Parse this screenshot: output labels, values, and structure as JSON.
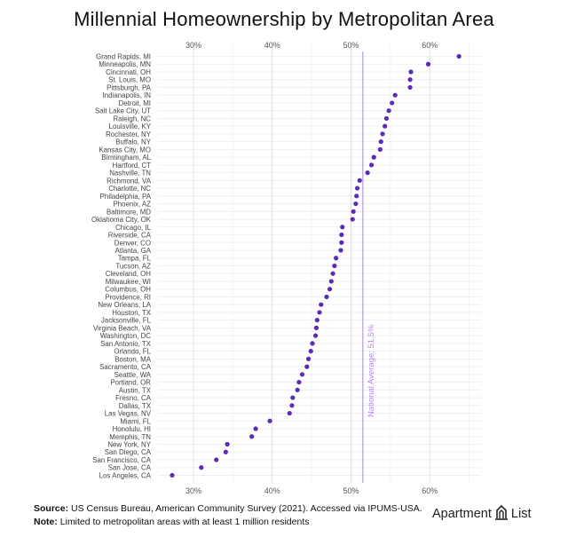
{
  "chart_data": {
    "type": "scatter",
    "title": "Millennial Homeownership by Metropolitan Area",
    "xlim": [
      0.255,
      0.665
    ],
    "xticks": [
      {
        "value": 0.3,
        "label": "30%"
      },
      {
        "value": 0.4,
        "label": "40%"
      },
      {
        "value": 0.5,
        "label": "50%"
      },
      {
        "value": 0.6,
        "label": "60%"
      }
    ],
    "reference_line": {
      "value": 0.515,
      "label": "National Average: 51.5%",
      "color": "#b28ce8"
    },
    "point_color": "#5b2bb5",
    "metros": [
      {
        "name": "Grand Rapids, MI",
        "value": 0.637
      },
      {
        "name": "Minneapolis, MN",
        "value": 0.598
      },
      {
        "name": "Cincinnati, OH",
        "value": 0.576
      },
      {
        "name": "St. Louis, MO",
        "value": 0.575
      },
      {
        "name": "Pittsburgh, PA",
        "value": 0.575
      },
      {
        "name": "Indianapolis, IN",
        "value": 0.556
      },
      {
        "name": "Detroit, MI",
        "value": 0.552
      },
      {
        "name": "Salt Lake City, UT",
        "value": 0.548
      },
      {
        "name": "Raleigh, NC",
        "value": 0.545
      },
      {
        "name": "Louisville, KY",
        "value": 0.543
      },
      {
        "name": "Rochester, NY",
        "value": 0.54
      },
      {
        "name": "Buffalo, NY",
        "value": 0.538
      },
      {
        "name": "Kansas City, MO",
        "value": 0.537
      },
      {
        "name": "Birmingham, AL",
        "value": 0.529
      },
      {
        "name": "Hartford, CT",
        "value": 0.526
      },
      {
        "name": "Nashville, TN",
        "value": 0.521
      },
      {
        "name": "Richmond, VA",
        "value": 0.511
      },
      {
        "name": "Charlotte, NC",
        "value": 0.508
      },
      {
        "name": "Philadelphia, PA",
        "value": 0.507
      },
      {
        "name": "Phoenix, AZ",
        "value": 0.506
      },
      {
        "name": "Baltimore, MD",
        "value": 0.503
      },
      {
        "name": "Oklahoma City, OK",
        "value": 0.502
      },
      {
        "name": "Chicago, IL",
        "value": 0.489
      },
      {
        "name": "Riverside, CA",
        "value": 0.488
      },
      {
        "name": "Denver, CO",
        "value": 0.488
      },
      {
        "name": "Atlanta, GA",
        "value": 0.487
      },
      {
        "name": "Tampa, FL",
        "value": 0.481
      },
      {
        "name": "Tucson, AZ",
        "value": 0.479
      },
      {
        "name": "Cleveland, OH",
        "value": 0.477
      },
      {
        "name": "Milwaukee, WI",
        "value": 0.475
      },
      {
        "name": "Columbus, OH",
        "value": 0.473
      },
      {
        "name": "Providence, RI",
        "value": 0.469
      },
      {
        "name": "New Orleans, LA",
        "value": 0.462
      },
      {
        "name": "Houston, TX",
        "value": 0.46
      },
      {
        "name": "Jacksonville, FL",
        "value": 0.457
      },
      {
        "name": "Virginia Beach, VA",
        "value": 0.456
      },
      {
        "name": "Washington, DC",
        "value": 0.455
      },
      {
        "name": "San Antonio, TX",
        "value": 0.451
      },
      {
        "name": "Orlando, FL",
        "value": 0.449
      },
      {
        "name": "Boston, MA",
        "value": 0.446
      },
      {
        "name": "Sacramento, CA",
        "value": 0.444
      },
      {
        "name": "Seattle, WA",
        "value": 0.438
      },
      {
        "name": "Portland, OR",
        "value": 0.434
      },
      {
        "name": "Austin, TX",
        "value": 0.432
      },
      {
        "name": "Fresno, CA",
        "value": 0.426
      },
      {
        "name": "Dallas, TX",
        "value": 0.425
      },
      {
        "name": "Las Vegas, NV",
        "value": 0.422
      },
      {
        "name": "Miami, FL",
        "value": 0.397
      },
      {
        "name": "Honolulu, HI",
        "value": 0.379
      },
      {
        "name": "Memphis, TN",
        "value": 0.374
      },
      {
        "name": "New York, NY",
        "value": 0.343
      },
      {
        "name": "San Diego, CA",
        "value": 0.341
      },
      {
        "name": "San Francisco, CA",
        "value": 0.329
      },
      {
        "name": "San Jose, CA",
        "value": 0.31
      },
      {
        "name": "Los Angeles, CA",
        "value": 0.273
      }
    ]
  },
  "footer": {
    "source_label": "Source:",
    "source_text": "US Census Bureau, American Community Survey (2021). Accessed via IPUMS-USA.",
    "note_label": "Note:",
    "note_text": "Limited to metropolitan areas with at least 1 million residents"
  },
  "brand": {
    "word1": "Apartment",
    "word2": "List",
    "icon": "apartment-list-logo-icon"
  }
}
